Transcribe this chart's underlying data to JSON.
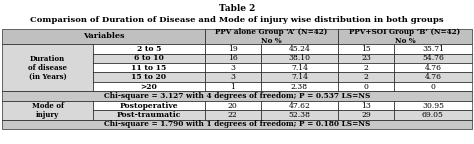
{
  "title1": "Table 2",
  "title2": "Comparison of Duration of Disease and Mode of injury wise distribution in both groups",
  "section1_label": "Duration\nof disease\n(in Years)",
  "section1_rows": [
    [
      "2 to 5",
      "19",
      "45.24",
      "15",
      "35.71"
    ],
    [
      "6 to 10",
      "16",
      "38.10",
      "23",
      "54.76"
    ],
    [
      "11 to 15",
      "3",
      "7.14",
      "2",
      "4.76"
    ],
    [
      "15 to 20",
      "3",
      "7.14",
      "2",
      "4.76"
    ],
    [
      ">20",
      "1",
      "2.38",
      "0",
      "0"
    ]
  ],
  "chi1": "Chi-square = 3.127 with 4 degrees of freedom; P = 0.537 LS=NS",
  "section2_label": "Mode of\ninjury",
  "section2_rows": [
    [
      "Postoperative",
      "20",
      "47.62",
      "13",
      "30.95"
    ],
    [
      "Post-traumatic",
      "22",
      "52.38",
      "29",
      "69.05"
    ]
  ],
  "chi2": "Chi-square = 1.790 with 1 degrees of freedom; P = 0.180 LS=NS",
  "header_bg": "#c0c0c0",
  "alt_bg": "#d8d8d8",
  "white_bg": "#ffffff",
  "chi_bg": "#c8c8c8",
  "fig_width": 4.74,
  "fig_height": 1.44,
  "dpi": 100
}
